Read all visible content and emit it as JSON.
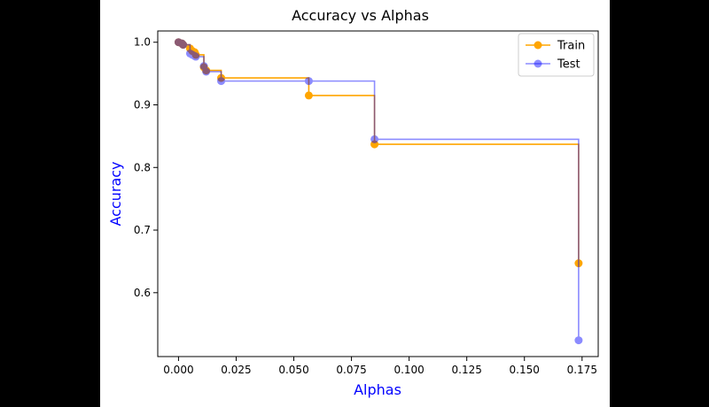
{
  "chart_data": {
    "type": "line",
    "drawstyle": "steps-post",
    "title": "Accuracy vs Alphas",
    "xlabel": "Alphas",
    "ylabel": "Accuracy",
    "axis_label_color": "#0000ff",
    "xlim": [
      -0.009,
      0.182
    ],
    "ylim": [
      0.498,
      1.018
    ],
    "xticks": [
      0.0,
      0.025,
      0.05,
      0.075,
      0.1,
      0.125,
      0.15,
      0.175
    ],
    "xtick_labels": [
      "0.000",
      "0.025",
      "0.050",
      "0.075",
      "0.100",
      "0.125",
      "0.150",
      "0.175"
    ],
    "yticks": [
      0.6,
      0.7,
      0.8,
      0.9,
      1.0
    ],
    "ytick_labels": [
      "0.6",
      "0.7",
      "0.8",
      "0.9",
      "1.0"
    ],
    "grid": false,
    "legend_position": "top-right",
    "series": [
      {
        "name": "Train",
        "color": "#ffa500",
        "opacity": 1,
        "x": [
          0.0,
          0.0015,
          0.002,
          0.005,
          0.006,
          0.007,
          0.0075,
          0.011,
          0.012,
          0.0185,
          0.0565,
          0.085,
          0.1735
        ],
        "y": [
          1.0,
          0.998,
          0.996,
          0.99,
          0.986,
          0.984,
          0.98,
          0.96,
          0.955,
          0.943,
          0.915,
          0.837,
          0.647
        ]
      },
      {
        "name": "Test",
        "color": "#0000ff",
        "opacity": 0.45,
        "x": [
          0.0,
          0.0015,
          0.002,
          0.005,
          0.006,
          0.007,
          0.0075,
          0.011,
          0.012,
          0.0185,
          0.0565,
          0.085,
          0.1735
        ],
        "y": [
          1.0,
          0.998,
          0.996,
          0.982,
          0.98,
          0.978,
          0.977,
          0.962,
          0.953,
          0.938,
          0.938,
          0.845,
          0.524
        ]
      }
    ]
  }
}
